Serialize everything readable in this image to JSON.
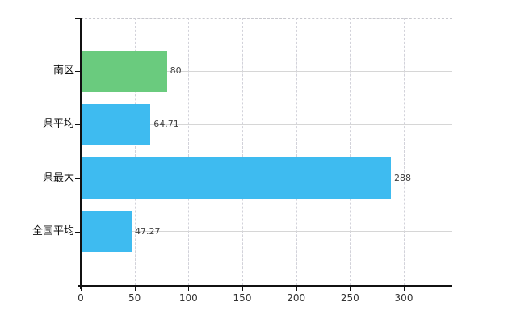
{
  "chart_data": {
    "type": "bar",
    "orientation": "horizontal",
    "title": "",
    "xlabel": "",
    "ylabel": "",
    "categories": [
      "南区",
      "県平均",
      "県最大",
      "全国平均"
    ],
    "values": [
      80,
      64.71,
      288,
      47.27
    ],
    "value_labels": [
      "80",
      "64.71",
      "288",
      "47.27"
    ],
    "bar_colors": [
      "#6acb7e",
      "#3ebbf0",
      "#3ebbf0",
      "#3ebbf0"
    ],
    "x_ticks": [
      0,
      50,
      100,
      150,
      200,
      250,
      300
    ],
    "x_tick_labels": [
      "0",
      "50",
      "100",
      "150",
      "200",
      "250",
      "300"
    ],
    "xlim": [
      0,
      345
    ],
    "grid": true,
    "legend": "none"
  },
  "colors": {
    "background": "#ffffff",
    "axis": "#111111",
    "vertical_grid": "#d2d2da",
    "horizontal_grid": "#d6d6d6",
    "highlight_bar": "#6acb7e",
    "default_bar": "#3ebbf0",
    "label_text": "#404040"
  }
}
